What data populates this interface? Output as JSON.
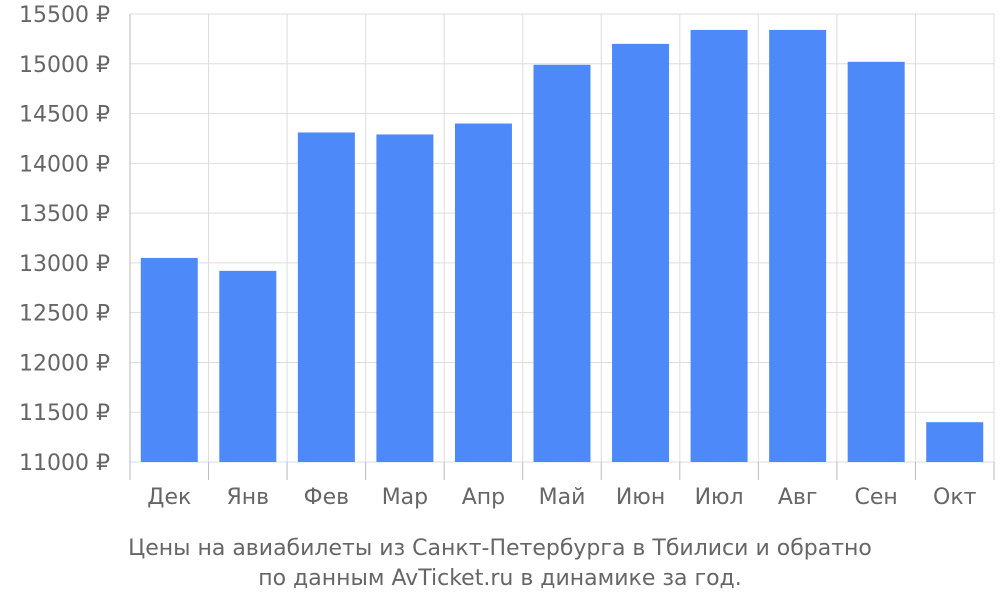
{
  "chart_data": {
    "type": "bar",
    "categories": [
      "Дек",
      "Янв",
      "Фев",
      "Мар",
      "Апр",
      "Май",
      "Июн",
      "Июл",
      "Авг",
      "Сен",
      "Окт"
    ],
    "values": [
      13050,
      12920,
      14310,
      14290,
      14400,
      14990,
      15200,
      15340,
      15340,
      15020,
      11400
    ],
    "y_ticks": [
      11000,
      11500,
      12000,
      12500,
      13000,
      13500,
      14000,
      14500,
      15000,
      15500
    ],
    "y_tick_suffix": " ₽",
    "ylim": [
      11000,
      15500
    ],
    "grid": true,
    "legend": "none",
    "bar_color": "#4d89f9",
    "grid_color": "#dddddd",
    "axis_color": "#bbbbbb",
    "text_color": "#666666",
    "caption": [
      "Цены на авиабилеты из Санкт-Петербурга в Тбилиси и обратно",
      "по данным AvTicket.ru в динамике за год."
    ]
  }
}
